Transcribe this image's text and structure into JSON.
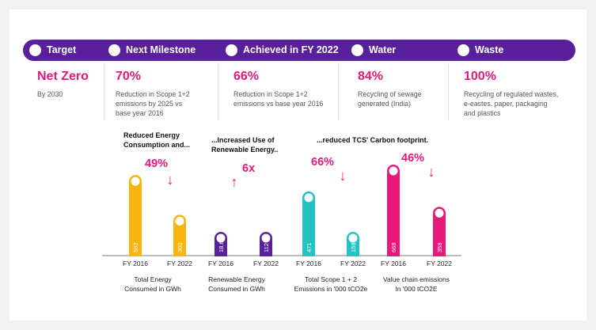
{
  "timeline": {
    "stages": [
      "Target",
      "Next Milestone",
      "Achieved in FY 2022",
      "Water",
      "Waste"
    ],
    "color": "#58209a"
  },
  "info": [
    {
      "value": "Net Zero",
      "lines": [
        "By 2030"
      ]
    },
    {
      "value": "70%",
      "lines": [
        "Reduction in Scope 1+2",
        "emissions by 2025 vs",
        "base year 2016"
      ]
    },
    {
      "value": "66%",
      "lines": [
        "Reduction in Scope 1+2",
        "emissions vs base year 2016"
      ]
    },
    {
      "value": "84%",
      "lines": [
        "Recycling of sewage",
        "generated (India)"
      ]
    },
    {
      "value": "100%",
      "lines": [
        "Recycling of regulated wastes,",
        "e-eastes, paper, packaging",
        "and plastics"
      ]
    }
  ],
  "colors": {
    "accent": "#e6197b"
  },
  "chart_data": [
    {
      "type": "bar",
      "caption": [
        "Reduced Energy",
        "Consumption and..."
      ],
      "change": "49%",
      "direction": "down",
      "title": [
        "Total Energy",
        "Consumed in GWh"
      ],
      "categories": [
        "FY 2016",
        "FY 2022"
      ],
      "values": [
        592,
        300
      ],
      "labels": [
        "592",
        "300"
      ],
      "color": "#f7b60f"
    },
    {
      "type": "bar",
      "caption": [
        "...Increased Use of",
        "Renewable Energy.."
      ],
      "change": "6x",
      "direction": "up",
      "title": [
        "Renewable Energy",
        "Consumed in GWh"
      ],
      "categories": [
        "FY 2016",
        "FY 2022"
      ],
      "values": [
        18.6,
        112
      ],
      "labels": [
        "18.6",
        "112"
      ],
      "color": "#58209a"
    },
    {
      "type": "bar",
      "caption": [
        "...reduced TCS' Carbon footprint."
      ],
      "change": "66%",
      "direction": "down",
      "title": [
        "Total Scope 1 + 2",
        "Emissions in '000 tCO2e"
      ],
      "categories": [
        "FY 2016",
        "FY 2022"
      ],
      "values": [
        471,
        158
      ],
      "labels": [
        "471",
        "158"
      ],
      "color": "#25c2c4"
    },
    {
      "type": "bar",
      "caption": [],
      "change": "46%",
      "direction": "down",
      "title": [
        "Value chain emissions",
        "In '000 tCO2E"
      ],
      "categories": [
        "FY 2016",
        "FY 2022"
      ],
      "values": [
        668,
        358
      ],
      "labels": [
        "668",
        "358"
      ],
      "color": "#e6197b"
    }
  ]
}
